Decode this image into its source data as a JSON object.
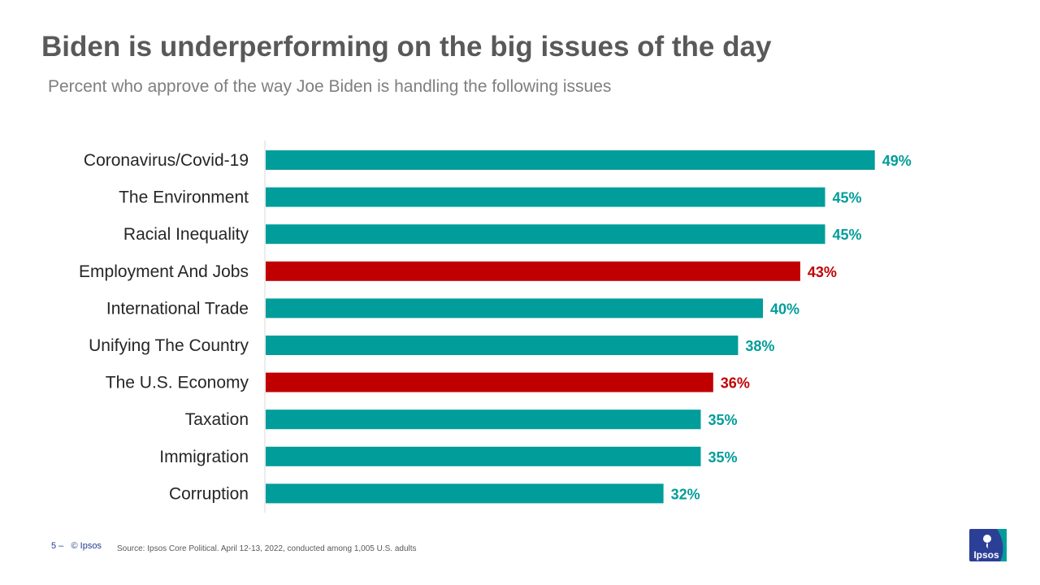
{
  "title": "Biden is underperforming on the big issues of the day",
  "subtitle": "Percent who approve of the way Joe Biden is handling the following issues",
  "chart_data": {
    "type": "bar",
    "orientation": "horizontal",
    "title": "Biden is underperforming on the big issues of the day",
    "subtitle": "Percent who approve of the way Joe Biden is handling the following issues",
    "xlabel": "",
    "ylabel": "",
    "xlim": [
      0,
      50
    ],
    "grid": false,
    "legend": "none",
    "value_suffix": "%",
    "categories": [
      "Coronavirus/Covid-19",
      "The Environment",
      "Racial Inequality",
      "Employment And Jobs",
      "International Trade",
      "Unifying The Country",
      "The U.S. Economy",
      "Taxation",
      "Immigration",
      "Corruption"
    ],
    "values": [
      49,
      45,
      45,
      43,
      40,
      38,
      36,
      35,
      35,
      32
    ],
    "data_labels": [
      "49%",
      "45%",
      "45%",
      "43%",
      "40%",
      "38%",
      "36%",
      "35%",
      "35%",
      "32%"
    ],
    "highlighted": [
      false,
      false,
      false,
      true,
      false,
      false,
      true,
      false,
      false,
      false
    ],
    "colors": {
      "default": "#009d9a",
      "highlight": "#c00000"
    }
  },
  "footer": {
    "page": "5 –",
    "copyright": "© Ipsos",
    "source": "Source: Ipsos Core Political.  April 12-13, 2022, conducted among 1,005 U.S. adults"
  },
  "logo": {
    "text": "Ipsos",
    "colors": {
      "blue": "#2c3f96",
      "teal": "#009d9a"
    }
  }
}
